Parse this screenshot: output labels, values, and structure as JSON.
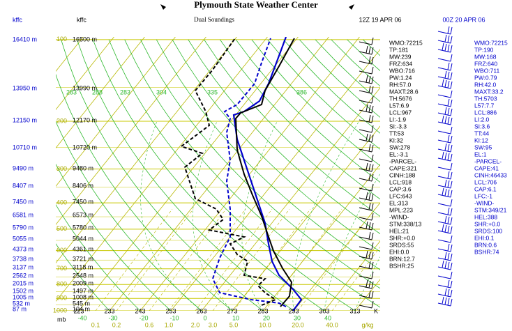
{
  "header": {
    "title": "Plymouth State Weather Center",
    "station_left": "kffc",
    "station_right": "kffc",
    "subtitle": "Dual Soundings",
    "time_left": "12Z 19 APR 06",
    "time_right": "00Z 20 APR 06"
  },
  "heights_left": [
    "16410 m",
    "13950 m",
    "12150 m",
    "10710 m",
    "9490 m",
    "8407 m",
    "7450 m",
    "6581 m",
    "5790 m",
    "5055 m",
    "4373 m",
    "3738 m",
    "3137 m",
    "2562 m",
    "2015 m",
    "1502 m",
    "1005 m",
    "532 m",
    "87 m"
  ],
  "heights_right": [
    "16500 m",
    "13990 m",
    "12170 m",
    "10720 m",
    "9480 m",
    "8406 m",
    "7450 m",
    "6573 m",
    "5780 m",
    "5044 m",
    "4361 m",
    "3721 m",
    "3118 m",
    "2548 m",
    "2009 m",
    "1497 m",
    "1008 m",
    "545 m",
    "104 m"
  ],
  "pressure_labels": [
    "100",
    "200",
    "300",
    "400",
    "500",
    "600",
    "700",
    "800",
    "900",
    "1000"
  ],
  "mb_label": "mb",
  "theta_labels": [
    "283",
    "288",
    "283",
    "304",
    "335",
    "386"
  ],
  "kelvin_labels": [
    "223",
    "233",
    "243",
    "253",
    "263",
    "273",
    "283",
    "293",
    "303",
    "313",
    "K"
  ],
  "celsius_labels": [
    "-40",
    "-30",
    "-20",
    "-10",
    "0",
    "10",
    "20",
    "30",
    "40"
  ],
  "mixing_labels": [
    "0.1",
    "0.2",
    "0.6",
    "1.0",
    "2.0",
    "3.0",
    "5.0",
    "10.0",
    "20.0",
    "40.0",
    "g/kg"
  ],
  "indices_left": [
    "WMO:72215",
    "TP:181",
    "MW:239",
    "FRZ:634",
    "WBO:716",
    "PW:1.24",
    "RH:57.0",
    "MAXT:28.6",
    "TH:5676",
    "L57:6.9",
    "LCL:967",
    "LI:-1.9",
    "SI:-3.3",
    "TT:53",
    "KI:32",
    "SW:278",
    "EL:-3.1",
    "-PARCEL-",
    "CAPE:321",
    "CINH:188",
    "LCL:918",
    "CAP:3.6",
    "LFC:643",
    "EL:313",
    "MPL:223",
    "-WIND-",
    "STM:338/13",
    "HEL:21",
    "SHR:+0.0",
    "SRDS:55",
    "EHI:0.0",
    "BRN:12.7",
    "BSHR:25"
  ],
  "indices_right": [
    "WMO:72215",
    "TP:190",
    "MW:168",
    "FRZ:640",
    "WBO:711",
    "PW:0.79",
    "RH:42.0",
    "MAXT:33.2",
    "TH:5703",
    "L57:7.7",
    "LCL:886",
    "LI:2.0",
    "SI:3.6",
    "TT:44",
    "KI:12",
    "SW:95",
    "EL:1",
    "-PARCEL-",
    "CAPE:41",
    "CINH:46433",
    "LCL:706",
    "CAP:6.1",
    "LFC:-1",
    "-WIND-",
    "STM:349/21",
    "HEL:388",
    "SHR:+0.0",
    "SRDS:100",
    "EHI:0.1",
    "BRN:0.6",
    "BSHR:74"
  ]
}
